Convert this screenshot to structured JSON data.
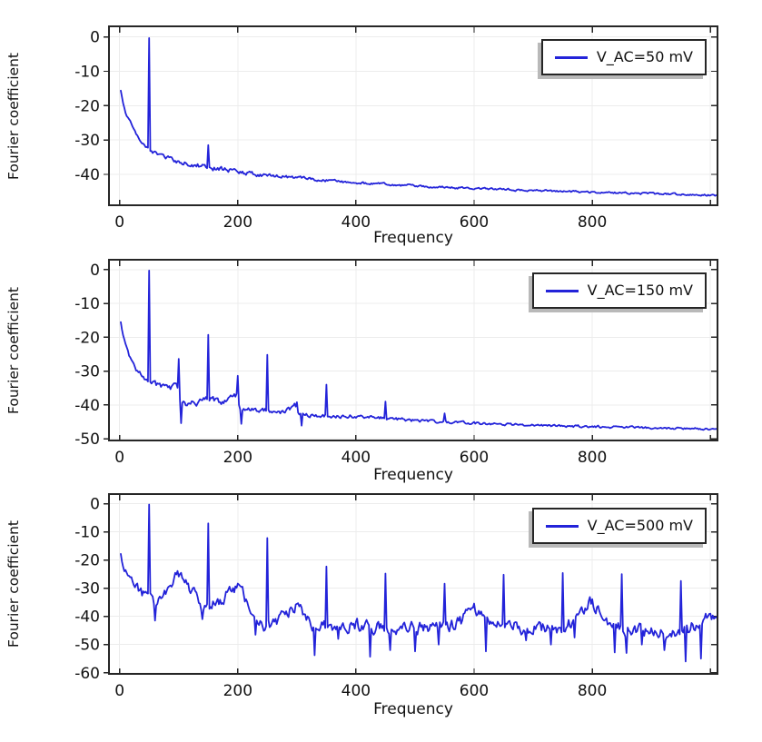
{
  "figure": {
    "background": "#ffffff",
    "text_color": "#111111",
    "grid_color": "#ececec",
    "frame_color": "#262626",
    "shadow_color": "#b9b9b9"
  },
  "chart_data": [
    {
      "type": "line",
      "title": "",
      "xlabel": "Frequency",
      "ylabel": "Fourier coefficient",
      "xlim": [
        -18,
        1012
      ],
      "ylim": [
        -49,
        3.1
      ],
      "xticks": [
        0,
        200,
        400,
        600,
        800,
        1000
      ],
      "xtick_labels": [
        "0",
        "200",
        "400",
        "600",
        "800",
        ""
      ],
      "yticks": [
        0,
        -10,
        -20,
        -30,
        -40
      ],
      "grid": true,
      "legend": {
        "label": "V_AC=50 mV",
        "position": "top-right"
      },
      "series": [
        {
          "name": "V_AC=50 mV",
          "color": "#2323d9",
          "seed": 11,
          "x_start": 2,
          "x_end": 1012,
          "x_step": 2,
          "baseline_anchors": [
            [
              2,
              -15.5
            ],
            [
              6,
              -19
            ],
            [
              10,
              -22
            ],
            [
              14,
              -23.5
            ],
            [
              18,
              -24.8
            ],
            [
              24,
              -26.5
            ],
            [
              30,
              -28.8
            ],
            [
              34,
              -30
            ],
            [
              38,
              -31
            ],
            [
              44,
              -32
            ],
            [
              48,
              -32.6
            ],
            [
              54,
              -33.3
            ],
            [
              62,
              -34
            ],
            [
              72,
              -34.6
            ],
            [
              84,
              -35.3
            ],
            [
              100,
              -36.1
            ],
            [
              120,
              -37
            ],
            [
              140,
              -37.7
            ],
            [
              160,
              -38.2
            ],
            [
              180,
              -38.6
            ],
            [
              200,
              -39.3
            ],
            [
              230,
              -40
            ],
            [
              260,
              -40.5
            ],
            [
              300,
              -41
            ],
            [
              350,
              -41.8
            ],
            [
              400,
              -42.4
            ],
            [
              450,
              -42.9
            ],
            [
              500,
              -43.3
            ],
            [
              550,
              -43.7
            ],
            [
              600,
              -44.1
            ],
            [
              650,
              -44.4
            ],
            [
              700,
              -44.7
            ],
            [
              750,
              -45
            ],
            [
              800,
              -45.2
            ],
            [
              850,
              -45.4
            ],
            [
              900,
              -45.6
            ],
            [
              950,
              -45.8
            ],
            [
              1012,
              -46.1
            ]
          ],
          "peaks": [
            [
              50,
              -0.3
            ],
            [
              150,
              -31.5
            ]
          ],
          "noise_anchors": [
            [
              2,
              0.3
            ],
            [
              60,
              0.5
            ],
            [
              100,
              0.8
            ],
            [
              250,
              0.5
            ],
            [
              400,
              0.35
            ],
            [
              1012,
              0.25
            ]
          ]
        }
      ]
    },
    {
      "type": "line",
      "title": "",
      "xlabel": "Frequency",
      "ylabel": "Fourier coefficient",
      "xlim": [
        -18,
        1012
      ],
      "ylim": [
        -50.5,
        2.9
      ],
      "xticks": [
        0,
        200,
        400,
        600,
        800,
        1000
      ],
      "xtick_labels": [
        "0",
        "200",
        "400",
        "600",
        "800",
        ""
      ],
      "yticks": [
        0,
        -10,
        -20,
        -30,
        -40,
        -50
      ],
      "grid": true,
      "legend": {
        "label": "V_AC=150 mV",
        "position": "top-right"
      },
      "series": [
        {
          "name": "V_AC=150 mV",
          "color": "#2323d9",
          "seed": 23,
          "x_start": 2,
          "x_end": 1012,
          "x_step": 2,
          "baseline_anchors": [
            [
              2,
              -15.5
            ],
            [
              6,
              -19.5
            ],
            [
              10,
              -22.5
            ],
            [
              14,
              -24.5
            ],
            [
              18,
              -26.3
            ],
            [
              22,
              -27.8
            ],
            [
              26,
              -29
            ],
            [
              30,
              -30.2
            ],
            [
              36,
              -31
            ],
            [
              42,
              -31.8
            ],
            [
              48,
              -32.5
            ],
            [
              54,
              -33.4
            ],
            [
              62,
              -34
            ],
            [
              72,
              -34.6
            ],
            [
              82,
              -35
            ],
            [
              90,
              -34.8
            ],
            [
              96,
              -34.2
            ],
            [
              102,
              -39
            ],
            [
              106,
              -40.5
            ],
            [
              112,
              -39.8
            ],
            [
              120,
              -38.8
            ],
            [
              130,
              -39.2
            ],
            [
              138,
              -38.6
            ],
            [
              146,
              -38.2
            ],
            [
              154,
              -38.3
            ],
            [
              164,
              -38.6
            ],
            [
              172,
              -39.2
            ],
            [
              182,
              -38.8
            ],
            [
              192,
              -37.8
            ],
            [
              198,
              -37
            ],
            [
              204,
              -41.5
            ],
            [
              212,
              -41.2
            ],
            [
              224,
              -41.3
            ],
            [
              236,
              -41.9
            ],
            [
              248,
              -41.5
            ],
            [
              262,
              -41.8
            ],
            [
              276,
              -42.2
            ],
            [
              290,
              -41
            ],
            [
              296,
              -40.2
            ],
            [
              304,
              -43.2
            ],
            [
              316,
              -42.8
            ],
            [
              330,
              -43
            ],
            [
              346,
              -43.2
            ],
            [
              364,
              -43.3
            ],
            [
              384,
              -43.2
            ],
            [
              404,
              -43.4
            ],
            [
              430,
              -43.7
            ],
            [
              456,
              -44
            ],
            [
              480,
              -44.3
            ],
            [
              510,
              -44.7
            ],
            [
              540,
              -45
            ],
            [
              570,
              -45.2
            ],
            [
              600,
              -45.4
            ],
            [
              640,
              -45.7
            ],
            [
              680,
              -45.9
            ],
            [
              720,
              -46.1
            ],
            [
              760,
              -46.3
            ],
            [
              800,
              -46.4
            ],
            [
              850,
              -46.6
            ],
            [
              900,
              -46.8
            ],
            [
              950,
              -46.9
            ],
            [
              1012,
              -47.1
            ]
          ],
          "peaks": [
            [
              50,
              -0.3
            ],
            [
              100,
              -26.4
            ],
            [
              104,
              -45.4
            ],
            [
              150,
              -19.3
            ],
            [
              200,
              -31.4
            ],
            [
              206,
              -45.6
            ],
            [
              250,
              -25.2
            ],
            [
              300,
              -39.2
            ],
            [
              308,
              -46.1
            ],
            [
              350,
              -34
            ],
            [
              450,
              -39
            ],
            [
              550,
              -42.5
            ]
          ],
          "noise_anchors": [
            [
              2,
              0.4
            ],
            [
              40,
              0.7
            ],
            [
              110,
              1
            ],
            [
              240,
              0.7
            ],
            [
              400,
              0.5
            ],
            [
              700,
              0.35
            ],
            [
              1012,
              0.3
            ]
          ]
        }
      ]
    },
    {
      "type": "line",
      "title": "",
      "xlabel": "Frequency",
      "ylabel": "Fourier coefficient",
      "xlim": [
        -18,
        1012
      ],
      "ylim": [
        -60.4,
        3.4
      ],
      "xticks": [
        0,
        200,
        400,
        600,
        800,
        1000
      ],
      "xtick_labels": [
        "0",
        "200",
        "400",
        "600",
        "800",
        ""
      ],
      "yticks": [
        0,
        -10,
        -20,
        -30,
        -40,
        -50,
        -60
      ],
      "grid": true,
      "legend": {
        "label": "V_AC=500 mV",
        "position": "top-right"
      },
      "series": [
        {
          "name": "V_AC=500 mV",
          "color": "#2323d9",
          "seed": 5,
          "x_start": 2,
          "x_end": 1012,
          "x_step": 2,
          "baseline_anchors": [
            [
              2,
              -18.5
            ],
            [
              6,
              -21.5
            ],
            [
              10,
              -23.5
            ],
            [
              16,
              -25.5
            ],
            [
              22,
              -27.5
            ],
            [
              28,
              -29.5
            ],
            [
              34,
              -31
            ],
            [
              40,
              -32.5
            ],
            [
              46,
              -33.5
            ],
            [
              54,
              -33.2
            ],
            [
              60,
              -35.5
            ],
            [
              66,
              -34.8
            ],
            [
              74,
              -33
            ],
            [
              82,
              -30.5
            ],
            [
              90,
              -27
            ],
            [
              98,
              -23.8
            ],
            [
              104,
              -24.5
            ],
            [
              112,
              -27.5
            ],
            [
              120,
              -30.5
            ],
            [
              128,
              -33
            ],
            [
              136,
              -35.5
            ],
            [
              144,
              -37.5
            ],
            [
              152,
              -36
            ],
            [
              160,
              -35.3
            ],
            [
              168,
              -35
            ],
            [
              176,
              -34
            ],
            [
              184,
              -31.8
            ],
            [
              192,
              -29.8
            ],
            [
              200,
              -28.7
            ],
            [
              208,
              -31.5
            ],
            [
              216,
              -34.5
            ],
            [
              224,
              -38
            ],
            [
              232,
              -41.5
            ],
            [
              244,
              -42.8
            ],
            [
              258,
              -42.6
            ],
            [
              270,
              -41.8
            ],
            [
              282,
              -39.5
            ],
            [
              292,
              -36.8
            ],
            [
              300,
              -35.8
            ],
            [
              308,
              -38.5
            ],
            [
              318,
              -41.5
            ],
            [
              330,
              -43.2
            ],
            [
              344,
              -43.6
            ],
            [
              360,
              -44
            ],
            [
              380,
              -44
            ],
            [
              400,
              -43.2
            ],
            [
              420,
              -43.8
            ],
            [
              440,
              -44.3
            ],
            [
              460,
              -43.8
            ],
            [
              480,
              -44.1
            ],
            [
              500,
              -43.8
            ],
            [
              520,
              -44.2
            ],
            [
              540,
              -44.6
            ],
            [
              560,
              -43.8
            ],
            [
              578,
              -41.5
            ],
            [
              590,
              -38.5
            ],
            [
              600,
              -36.3
            ],
            [
              608,
              -38
            ],
            [
              618,
              -41
            ],
            [
              632,
              -42.8
            ],
            [
              648,
              -43.3
            ],
            [
              664,
              -43.6
            ],
            [
              680,
              -44
            ],
            [
              700,
              -43.8
            ],
            [
              716,
              -44.2
            ],
            [
              732,
              -44.4
            ],
            [
              748,
              -44
            ],
            [
              764,
              -42.5
            ],
            [
              780,
              -39.5
            ],
            [
              796,
              -34.8
            ],
            [
              804,
              -36.2
            ],
            [
              812,
              -38.5
            ],
            [
              822,
              -41.5
            ],
            [
              836,
              -43.5
            ],
            [
              852,
              -44.2
            ],
            [
              868,
              -44.8
            ],
            [
              884,
              -45.2
            ],
            [
              900,
              -45.5
            ],
            [
              916,
              -46
            ],
            [
              932,
              -46.3
            ],
            [
              948,
              -45.5
            ],
            [
              962,
              -44.5
            ],
            [
              976,
              -43
            ],
            [
              990,
              -41
            ],
            [
              1002,
              -39.5
            ],
            [
              1012,
              -38.5
            ]
          ],
          "peaks": [
            [
              50,
              -0.3
            ],
            [
              60,
              -41.5
            ],
            [
              140,
              -41
            ],
            [
              150,
              -7
            ],
            [
              230,
              -46.5
            ],
            [
              250,
              -12.2
            ],
            [
              330,
              -53.8
            ],
            [
              350,
              -22.3
            ],
            [
              370,
              -48
            ],
            [
              424,
              -54.3
            ],
            [
              450,
              -24.8
            ],
            [
              458,
              -52
            ],
            [
              500,
              -52.4
            ],
            [
              540,
              -50
            ],
            [
              550,
              -28.4
            ],
            [
              620,
              -52.4
            ],
            [
              650,
              -25.2
            ],
            [
              688,
              -48.5
            ],
            [
              730,
              -50
            ],
            [
              750,
              -24.6
            ],
            [
              770,
              -47.5
            ],
            [
              838,
              -52.8
            ],
            [
              850,
              -25
            ],
            [
              858,
              -53
            ],
            [
              884,
              -50
            ],
            [
              922,
              -52
            ],
            [
              950,
              -27.4
            ],
            [
              958,
              -56
            ],
            [
              984,
              -55
            ]
          ],
          "noise_anchors": [
            [
              2,
              1.2
            ],
            [
              40,
              2
            ],
            [
              200,
              2.2
            ],
            [
              1012,
              2.3
            ]
          ]
        }
      ]
    }
  ]
}
